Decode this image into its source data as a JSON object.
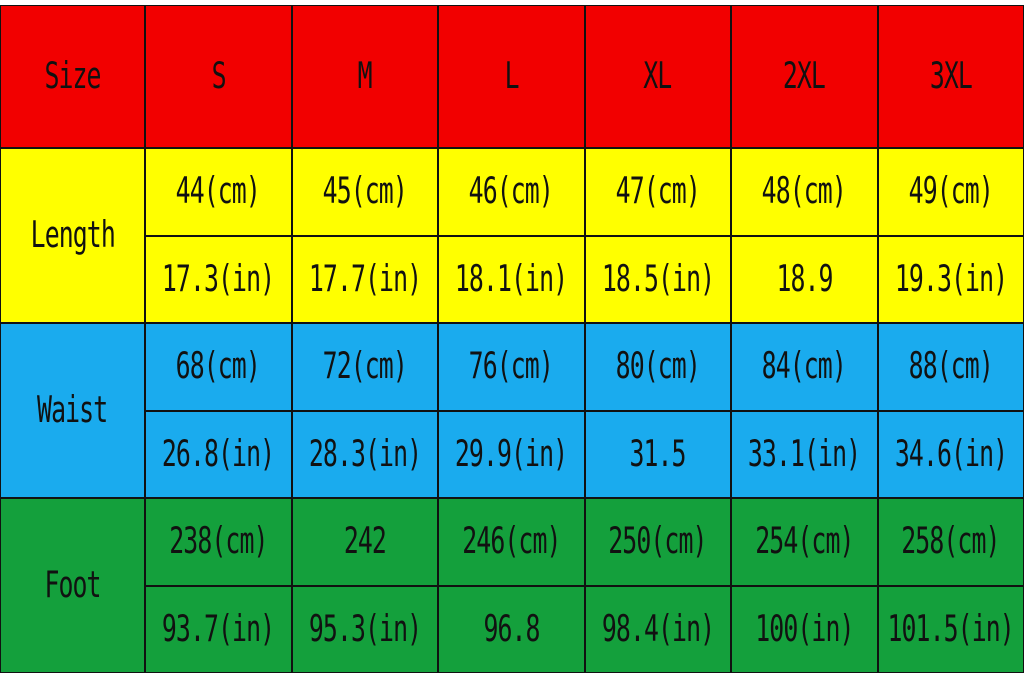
{
  "header": [
    "Size",
    "S",
    "M",
    "L",
    "XL",
    "2XL",
    "3XL"
  ],
  "groups": [
    {
      "label": "Length",
      "rows": [
        [
          "44(cm)",
          "45(cm)",
          "46(cm)",
          "47(cm)",
          "48(cm)",
          "49(cm)"
        ],
        [
          "17.3(in)",
          "17.7(in)",
          "18.1(in)",
          "18.5(in)",
          "18.9",
          "19.3(in)"
        ]
      ]
    },
    {
      "label": "Waist",
      "rows": [
        [
          "68(cm)",
          "72(cm)",
          "76(cm)",
          "80(cm)",
          "84(cm)",
          "88(cm)"
        ],
        [
          "26.8(in)",
          "28.3(in)",
          "29.9(in)",
          "31.5",
          "33.1(in)",
          "34.6(in)"
        ]
      ]
    },
    {
      "label": "Foot",
      "rows": [
        [
          "238(cm)",
          "242",
          "246(cm)",
          "250(cm)",
          "254(cm)",
          "258(cm)"
        ],
        [
          "93.7(in)",
          "95.3(in)",
          "96.8",
          "98.4(in)",
          "100(in)",
          "101.5(in)"
        ]
      ]
    }
  ]
}
